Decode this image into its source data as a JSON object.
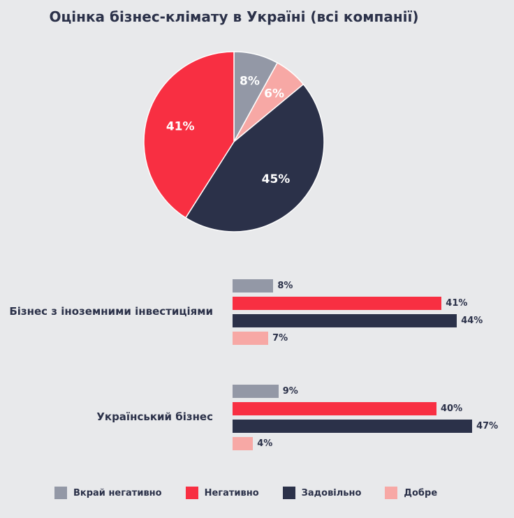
{
  "chart_data": [
    {
      "type": "pie",
      "title": "Оцінка бізнес-клімату в Україні (всі компанії)",
      "slices": [
        {
          "name": "Вкрай негативно",
          "value": 8,
          "label": "8%",
          "color": "#9398a6"
        },
        {
          "name": "Добре",
          "value": 6,
          "label": "6%",
          "color": "#f7a8a5"
        },
        {
          "name": "Задовільно",
          "value": 45,
          "label": "45%",
          "color": "#2b3149"
        },
        {
          "name": "Негативно",
          "value": 41,
          "label": "41%",
          "color": "#f82f42"
        }
      ]
    },
    {
      "type": "bar",
      "orientation": "horizontal",
      "categories": [
        "Бізнес з іноземними інвестиціями",
        "Український бізнес"
      ],
      "series": [
        {
          "name": "Вкрай негативно",
          "color": "#9398a6",
          "values": [
            8,
            9
          ],
          "labels": [
            "8%",
            "9%"
          ]
        },
        {
          "name": "Негативно",
          "color": "#f82f42",
          "values": [
            41,
            40
          ],
          "labels": [
            "41%",
            "40%"
          ]
        },
        {
          "name": "Задовільно",
          "color": "#2b3149",
          "values": [
            44,
            47
          ],
          "labels": [
            "44%",
            "47%"
          ]
        },
        {
          "name": "Добре",
          "color": "#f7a8a5",
          "values": [
            7,
            4
          ],
          "labels": [
            "7%",
            "4%"
          ]
        }
      ],
      "legend_position": "bottom"
    }
  ],
  "legend": [
    {
      "name": "Вкрай негативно",
      "color": "#9398a6"
    },
    {
      "name": "Негативно",
      "color": "#f82f42"
    },
    {
      "name": "Задовільно",
      "color": "#2b3149"
    },
    {
      "name": "Добре",
      "color": "#f7a8a5"
    }
  ]
}
